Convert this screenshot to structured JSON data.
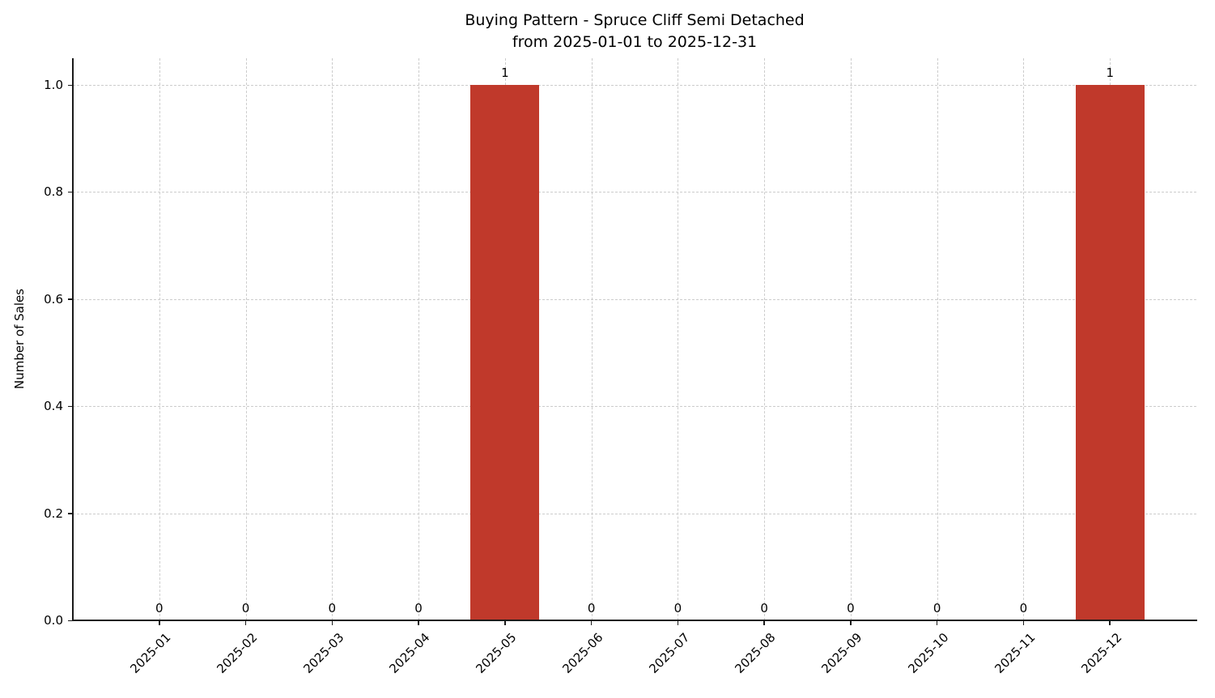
{
  "chart_data": {
    "type": "bar",
    "title": "Buying Pattern - Spruce Cliff Semi Detached",
    "subtitle": "from 2025-01-01 to 2025-12-31",
    "ylabel": "Number of Sales",
    "xlabel": "",
    "categories": [
      "2025-01",
      "2025-02",
      "2025-03",
      "2025-04",
      "2025-05",
      "2025-06",
      "2025-07",
      "2025-08",
      "2025-09",
      "2025-10",
      "2025-11",
      "2025-12"
    ],
    "values": [
      0,
      0,
      0,
      0,
      1,
      0,
      0,
      0,
      0,
      0,
      0,
      1
    ],
    "bar_value_labels": [
      "0",
      "0",
      "0",
      "0",
      "1",
      "0",
      "0",
      "0",
      "0",
      "0",
      "0",
      "1"
    ],
    "ylim": [
      0,
      1.05
    ],
    "yticks": [
      0.0,
      0.2,
      0.4,
      0.6,
      0.8,
      1.0
    ],
    "ytick_labels": [
      "0.0",
      "0.2",
      "0.4",
      "0.6",
      "0.8",
      "1.0"
    ],
    "bar_color": "#c0392b",
    "grid": "dashed",
    "grid_color": "#cccccc",
    "background_color": "#ffffff",
    "legend": "none"
  }
}
